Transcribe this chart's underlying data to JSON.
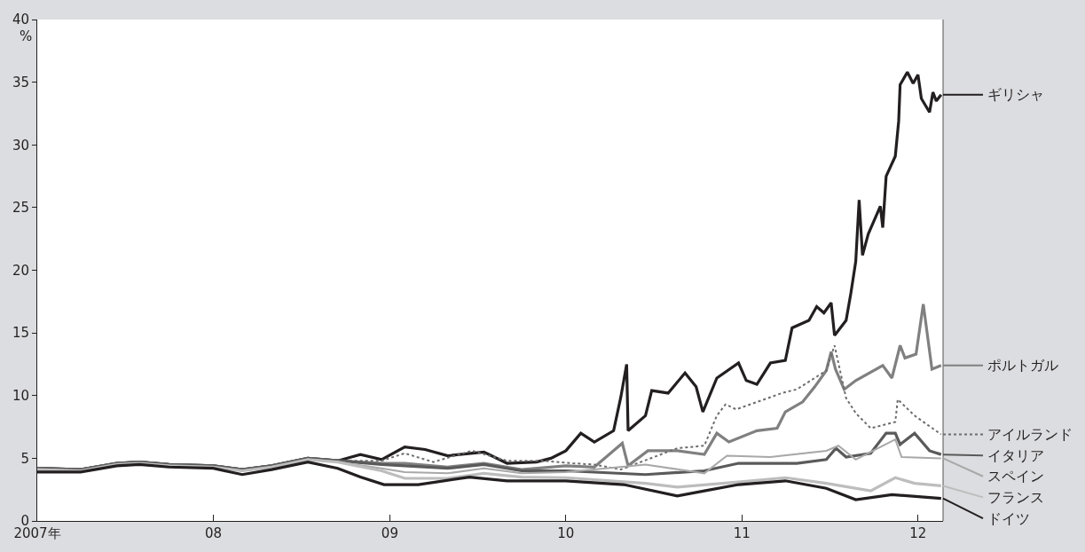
{
  "chart_data": {
    "type": "line",
    "ylabel": "%",
    "legend": "right",
    "marker": "none",
    "xlim": [
      "2007-01-01",
      "2012-02-22"
    ],
    "xticks": [
      {
        "value": "2007-01-01",
        "label": "2007年"
      },
      {
        "value": "2008-01-01",
        "label": "08"
      },
      {
        "value": "2009-01-01",
        "label": "09"
      },
      {
        "value": "2010-01-01",
        "label": "10"
      },
      {
        "value": "2011-01-01",
        "label": "11"
      },
      {
        "value": "2012-01-01",
        "label": "12"
      }
    ],
    "ylim": [
      0,
      40
    ],
    "yticks": [
      0,
      5,
      10,
      15,
      20,
      25,
      30,
      35,
      40
    ],
    "series": [
      {
        "name": "ギリシャ",
        "color": "#231f20",
        "line_style": "solid",
        "x": [
          "2007-01-01",
          "2007-04-01",
          "2007-06-15",
          "2007-08-01",
          "2007-10-01",
          "2008-01-01",
          "2008-03-01",
          "2008-05-01",
          "2008-07-15",
          "2008-09-15",
          "2008-11-01",
          "2008-12-15",
          "2009-02-01",
          "2009-03-15",
          "2009-05-01",
          "2009-07-15",
          "2009-09-01",
          "2009-11-01",
          "2009-12-01",
          "2010-01-01",
          "2010-02-01",
          "2010-03-01",
          "2010-04-10",
          "2010-04-25",
          "2010-05-07",
          "2010-05-10",
          "2010-06-15",
          "2010-06-28",
          "2010-08-01",
          "2010-09-05",
          "2010-09-28",
          "2010-10-12",
          "2010-11-10",
          "2010-12-25",
          "2011-01-10",
          "2011-02-01",
          "2011-03-01",
          "2011-04-01",
          "2011-04-15",
          "2011-05-20",
          "2011-06-05",
          "2011-06-20",
          "2011-07-05",
          "2011-07-12",
          "2011-08-05",
          "2011-08-15",
          "2011-08-25",
          "2011-09-01",
          "2011-09-08",
          "2011-09-20",
          "2011-10-15",
          "2011-10-20",
          "2011-10-27",
          "2011-11-15",
          "2011-11-22",
          "2011-11-25",
          "2011-12-10",
          "2011-12-22",
          "2012-01-01",
          "2012-01-08",
          "2012-01-25",
          "2012-02-01",
          "2012-02-08",
          "2012-02-18"
        ],
        "values": [
          4.2,
          4.1,
          4.6,
          4.7,
          4.5,
          4.4,
          4.1,
          4.4,
          5.0,
          4.8,
          5.3,
          4.9,
          5.9,
          5.7,
          5.2,
          5.5,
          4.6,
          4.7,
          5.0,
          5.6,
          7.0,
          6.3,
          7.2,
          9.9,
          12.5,
          7.2,
          8.4,
          10.4,
          10.2,
          11.8,
          10.7,
          8.7,
          11.4,
          12.6,
          11.2,
          10.9,
          12.6,
          12.8,
          15.4,
          16.0,
          17.1,
          16.6,
          17.4,
          14.8,
          16.0,
          18.2,
          20.7,
          25.6,
          21.2,
          22.9,
          25.1,
          23.4,
          27.5,
          29.1,
          31.9,
          34.8,
          35.8,
          34.9,
          35.6,
          33.7,
          32.6,
          34.2,
          33.5,
          34.0
        ]
      },
      {
        "name": "ポルトガル",
        "color": "#808080",
        "line_style": "solid",
        "x": [
          "2007-01-01",
          "2007-04-01",
          "2007-06-15",
          "2007-08-01",
          "2007-10-01",
          "2008-01-01",
          "2008-03-01",
          "2008-05-01",
          "2008-07-15",
          "2008-09-15",
          "2008-12-15",
          "2009-02-01",
          "2009-05-01",
          "2009-07-15",
          "2009-10-01",
          "2010-01-01",
          "2010-03-01",
          "2010-04-28",
          "2010-05-10",
          "2010-06-20",
          "2010-08-20",
          "2010-10-15",
          "2010-11-10",
          "2010-12-05",
          "2011-02-01",
          "2011-03-15",
          "2011-04-01",
          "2011-05-07",
          "2011-06-01",
          "2011-06-25",
          "2011-07-05",
          "2011-07-14",
          "2011-08-01",
          "2011-08-25",
          "2011-10-20",
          "2011-11-08",
          "2011-11-25",
          "2011-12-05",
          "2011-12-28",
          "2012-01-12",
          "2012-01-30",
          "2012-02-18"
        ],
        "values": [
          4.2,
          4.1,
          4.6,
          4.7,
          4.5,
          4.4,
          4.1,
          4.4,
          5.0,
          4.8,
          4.6,
          4.6,
          4.3,
          4.6,
          4.1,
          4.4,
          4.3,
          6.2,
          4.4,
          5.6,
          5.6,
          5.3,
          7.0,
          6.3,
          7.2,
          7.4,
          8.7,
          9.5,
          10.7,
          12.0,
          13.5,
          12.1,
          10.5,
          11.2,
          12.4,
          11.4,
          14.0,
          13.0,
          13.3,
          17.3,
          12.1,
          12.4
        ]
      },
      {
        "name": "アイルランド",
        "color": "#6d6d6d",
        "line_style": "dotted",
        "x": [
          "2007-01-01",
          "2007-04-01",
          "2007-06-15",
          "2007-08-01",
          "2007-10-01",
          "2008-01-01",
          "2008-03-01",
          "2008-05-01",
          "2008-07-15",
          "2008-09-15",
          "2008-12-15",
          "2009-02-01",
          "2009-04-01",
          "2009-06-20",
          "2009-09-01",
          "2009-11-15",
          "2010-01-15",
          "2010-03-01",
          "2010-04-25",
          "2010-08-20",
          "2010-10-15",
          "2010-11-10",
          "2010-11-28",
          "2010-12-20",
          "2011-03-25",
          "2011-04-25",
          "2011-06-25",
          "2011-07-12",
          "2011-08-05",
          "2011-08-25",
          "2011-09-25",
          "2011-11-15",
          "2011-11-20",
          "2011-12-25",
          "2012-02-18"
        ],
        "values": [
          4.2,
          4.1,
          4.6,
          4.7,
          4.5,
          4.4,
          4.1,
          4.4,
          5.0,
          4.8,
          4.8,
          5.4,
          4.7,
          5.6,
          4.8,
          4.8,
          4.6,
          4.5,
          4.1,
          5.8,
          6.0,
          8.4,
          9.3,
          8.9,
          10.2,
          10.5,
          12.0,
          14.0,
          9.8,
          8.6,
          7.4,
          7.9,
          9.7,
          8.4,
          6.9
        ]
      },
      {
        "name": "イタリア",
        "color": "#5a5a5a",
        "line_style": "solid",
        "x": [
          "2007-01-01",
          "2007-04-01",
          "2007-06-15",
          "2007-08-01",
          "2007-10-01",
          "2008-01-01",
          "2008-03-01",
          "2008-05-01",
          "2008-07-15",
          "2008-09-15",
          "2008-12-15",
          "2009-02-01",
          "2009-05-01",
          "2009-07-15",
          "2009-10-01",
          "2010-01-01",
          "2010-06-15",
          "2010-10-15",
          "2010-12-25",
          "2011-04-25",
          "2011-06-25",
          "2011-07-15",
          "2011-08-05",
          "2011-09-25",
          "2011-10-27",
          "2011-11-15",
          "2011-11-25",
          "2011-12-25",
          "2012-01-25",
          "2012-02-18"
        ],
        "values": [
          4.2,
          4.1,
          4.6,
          4.7,
          4.5,
          4.4,
          4.1,
          4.4,
          5.0,
          4.8,
          4.5,
          4.4,
          4.2,
          4.5,
          4.0,
          4.0,
          3.7,
          4.0,
          4.6,
          4.6,
          4.9,
          5.8,
          5.1,
          5.4,
          7.0,
          7.0,
          6.1,
          7.0,
          5.6,
          5.3
        ]
      },
      {
        "name": "スペイン",
        "color": "#a8a8a8",
        "line_style": "solid",
        "x": [
          "2007-01-01",
          "2007-04-01",
          "2007-06-15",
          "2007-08-01",
          "2007-10-01",
          "2008-01-01",
          "2008-03-01",
          "2008-05-01",
          "2008-07-15",
          "2008-09-15",
          "2008-12-15",
          "2009-02-01",
          "2009-05-01",
          "2009-07-15",
          "2009-10-01",
          "2010-01-01",
          "2010-06-15",
          "2010-10-15",
          "2010-12-01",
          "2011-03-01",
          "2011-06-25",
          "2011-07-20",
          "2011-08-25",
          "2011-11-15",
          "2011-11-28",
          "2012-02-18"
        ],
        "values": [
          4.1,
          4.0,
          4.5,
          4.6,
          4.4,
          4.3,
          4.0,
          4.3,
          4.9,
          4.7,
          4.2,
          3.9,
          3.8,
          4.2,
          3.8,
          3.9,
          4.5,
          3.8,
          5.2,
          5.1,
          5.6,
          6.0,
          4.9,
          6.5,
          5.1,
          5.0
        ]
      },
      {
        "name": "フランス",
        "color": "#bdbdbd",
        "line_style": "solid",
        "x": [
          "2007-01-01",
          "2007-04-01",
          "2007-06-15",
          "2007-08-01",
          "2007-10-01",
          "2008-01-01",
          "2008-03-01",
          "2008-05-01",
          "2008-07-15",
          "2008-09-15",
          "2008-12-15",
          "2009-02-01",
          "2009-05-01",
          "2009-07-15",
          "2009-10-01",
          "2010-01-01",
          "2010-06-15",
          "2010-08-20",
          "2010-12-25",
          "2011-04-01",
          "2011-06-25",
          "2011-09-25",
          "2011-11-15",
          "2011-12-25",
          "2012-02-18"
        ],
        "values": [
          4.1,
          4.0,
          4.5,
          4.6,
          4.4,
          4.3,
          4.0,
          4.3,
          4.9,
          4.7,
          4.0,
          3.4,
          3.4,
          3.8,
          3.5,
          3.45,
          3.0,
          2.7,
          3.1,
          3.45,
          3.0,
          2.4,
          3.45,
          3.0,
          2.8
        ]
      },
      {
        "name": "ドイツ",
        "color": "#231f20",
        "line_style": "solid",
        "x": [
          "2007-01-01",
          "2007-04-01",
          "2007-06-15",
          "2007-08-01",
          "2007-10-01",
          "2008-01-01",
          "2008-03-01",
          "2008-05-01",
          "2008-07-15",
          "2008-09-15",
          "2008-11-01",
          "2008-12-20",
          "2009-03-01",
          "2009-06-15",
          "2009-09-01",
          "2010-01-01",
          "2010-05-01",
          "2010-08-20",
          "2010-10-15",
          "2010-12-25",
          "2011-04-01",
          "2011-06-25",
          "2011-08-25",
          "2011-11-08",
          "2012-02-18"
        ],
        "values": [
          3.9,
          3.9,
          4.4,
          4.5,
          4.3,
          4.2,
          3.7,
          4.1,
          4.7,
          4.2,
          3.5,
          2.9,
          2.9,
          3.5,
          3.2,
          3.2,
          2.9,
          2.0,
          2.4,
          2.9,
          3.2,
          2.6,
          1.7,
          2.1,
          1.8
        ]
      }
    ]
  }
}
